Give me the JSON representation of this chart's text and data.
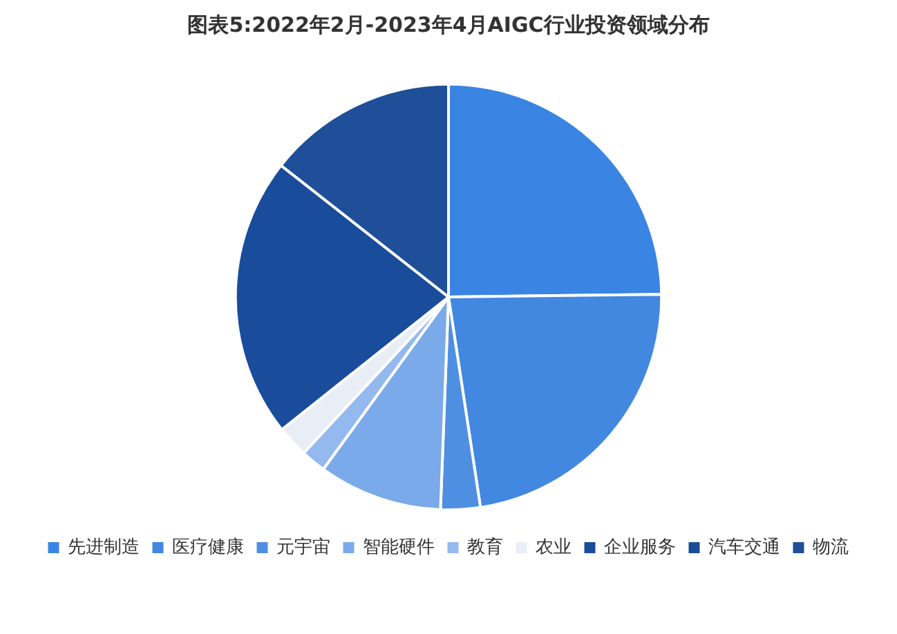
{
  "chart_data": {
    "type": "pie",
    "title": "图表5:2022年2月-2023年4月AIGC行业投资领域分布",
    "categories": [
      "先进制造",
      "医疗健康",
      "元宇宙",
      "智能硬件",
      "教育",
      "农业",
      "企业服务",
      "汽车交通",
      "物流"
    ],
    "values": [
      24.8,
      22.8,
      3.0,
      9.4,
      1.9,
      2.4,
      21.3,
      0,
      14.4
    ],
    "colors": [
      "#3a84e4",
      "#4287e0",
      "#4f8fe2",
      "#7aaaea",
      "#93b9ee",
      "#e9eef6",
      "#1a4c9c",
      "#1b4d96",
      "#1e4f98"
    ],
    "legend": "bottom"
  }
}
